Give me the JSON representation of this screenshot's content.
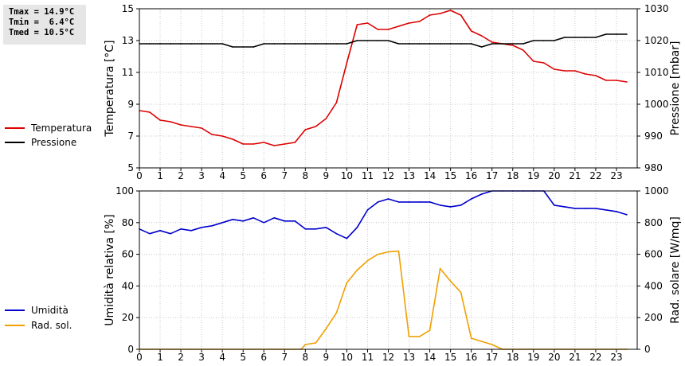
{
  "stats": {
    "tmax": "Tmax = 14.9°C",
    "tmin": "Tmin =  6.4°C",
    "tmed": "Tmed = 10.5°C"
  },
  "chart_data": [
    {
      "type": "line",
      "title": "",
      "xlabel": "",
      "ylabel": "Temperatura [°C]",
      "ylabel_right": "Pressione [mbar]",
      "xlim": [
        0,
        24
      ],
      "ylim": [
        5,
        15
      ],
      "ylim_right": [
        980,
        1030
      ],
      "xticks": [
        "0",
        "1",
        "2",
        "3",
        "4",
        "5",
        "6",
        "7",
        "8",
        "9",
        "10",
        "11",
        "12",
        "13",
        "14",
        "15",
        "16",
        "17",
        "18",
        "19",
        "20",
        "21",
        "22",
        "23"
      ],
      "yticks": [
        "5",
        "7",
        "9",
        "11",
        "13",
        "15"
      ],
      "yticks_right": [
        "980",
        "990",
        "1000",
        "1010",
        "1020",
        "1030"
      ],
      "grid": true,
      "legend_position": "left",
      "series": [
        {
          "name": "Temperatura",
          "color": "#dd0000",
          "axis": "left",
          "x": [
            0,
            0.5,
            1,
            1.5,
            2,
            2.5,
            3,
            3.5,
            4,
            4.5,
            5,
            5.5,
            6,
            6.5,
            7,
            7.5,
            8,
            8.5,
            9,
            9.5,
            10,
            10.5,
            11,
            11.5,
            12,
            12.5,
            13,
            13.5,
            14,
            14.5,
            15,
            15.5,
            16,
            16.5,
            17,
            17.5,
            18,
            18.5,
            19,
            19.5,
            20,
            20.5,
            21,
            21.5,
            22,
            22.5,
            23,
            23.5
          ],
          "values": [
            8.6,
            8.5,
            8.0,
            7.9,
            7.7,
            7.6,
            7.5,
            7.1,
            7.0,
            6.8,
            6.5,
            6.5,
            6.6,
            6.4,
            6.5,
            6.6,
            7.4,
            7.6,
            8.1,
            9.1,
            11.6,
            14.0,
            14.1,
            13.7,
            13.7,
            13.9,
            14.1,
            14.2,
            14.6,
            14.7,
            14.9,
            14.6,
            13.6,
            13.3,
            12.9,
            12.8,
            12.7,
            12.4,
            11.7,
            11.6,
            11.2,
            11.1,
            11.1,
            10.9,
            10.8,
            10.5,
            10.5,
            10.4
          ]
        },
        {
          "name": "Pressione",
          "color": "#000000",
          "axis": "right",
          "x": [
            0,
            0.5,
            1,
            1.5,
            2,
            2.5,
            3,
            3.5,
            4,
            4.5,
            5,
            5.5,
            6,
            6.5,
            7,
            7.5,
            8,
            8.5,
            9,
            9.5,
            10,
            10.5,
            11,
            11.5,
            12,
            12.5,
            13,
            13.5,
            14,
            14.5,
            15,
            15.5,
            16,
            16.5,
            17,
            17.5,
            18,
            18.5,
            19,
            19.5,
            20,
            20.5,
            21,
            21.5,
            22,
            22.5,
            23,
            23.5
          ],
          "values": [
            1019,
            1019,
            1019,
            1019,
            1019,
            1019,
            1019,
            1019,
            1019,
            1018,
            1018,
            1018,
            1019,
            1019,
            1019,
            1019,
            1019,
            1019,
            1019,
            1019,
            1019,
            1020,
            1020,
            1020,
            1020,
            1019,
            1019,
            1019,
            1019,
            1019,
            1019,
            1019,
            1019,
            1018,
            1019,
            1019,
            1019,
            1019,
            1020,
            1020,
            1020,
            1021,
            1021,
            1021,
            1021,
            1022,
            1022,
            1022
          ]
        }
      ]
    },
    {
      "type": "line",
      "title": "",
      "xlabel": "",
      "ylabel": "Umidità relativa [%]",
      "ylabel_right": "Rad. solare [W/mq]",
      "xlim": [
        0,
        24
      ],
      "ylim": [
        0,
        100
      ],
      "ylim_right": [
        0,
        1000
      ],
      "xticks": [
        "0",
        "1",
        "2",
        "3",
        "4",
        "5",
        "6",
        "7",
        "8",
        "9",
        "10",
        "11",
        "12",
        "13",
        "14",
        "15",
        "16",
        "17",
        "18",
        "19",
        "20",
        "21",
        "22",
        "23"
      ],
      "yticks": [
        "0",
        "20",
        "40",
        "60",
        "80",
        "100"
      ],
      "yticks_right": [
        "0",
        "200",
        "400",
        "600",
        "800",
        "1000"
      ],
      "grid": true,
      "legend_position": "left",
      "series": [
        {
          "name": "Umidità",
          "color": "#0000cc",
          "axis": "left",
          "x": [
            0,
            0.5,
            1,
            1.5,
            2,
            2.5,
            3,
            3.5,
            4,
            4.5,
            5,
            5.5,
            6,
            6.5,
            7,
            7.5,
            8,
            8.5,
            9,
            9.5,
            10,
            10.5,
            11,
            11.5,
            12,
            12.5,
            13,
            13.5,
            14,
            14.5,
            15,
            15.5,
            16,
            16.5,
            17,
            17.5,
            18,
            18.5,
            19,
            19.5,
            20,
            20.5,
            21,
            21.5,
            22,
            22.5,
            23,
            23.5
          ],
          "values": [
            76,
            73,
            75,
            73,
            76,
            75,
            77,
            78,
            80,
            82,
            81,
            83,
            80,
            83,
            81,
            81,
            76,
            76,
            77,
            73,
            70,
            77,
            88,
            93,
            95,
            93,
            93,
            93,
            93,
            91,
            90,
            91,
            95,
            98,
            100,
            100,
            100,
            100,
            100,
            100,
            91,
            90,
            89,
            89,
            89,
            88,
            87,
            85
          ]
        },
        {
          "name": "Rad. sol.",
          "color": "#f0a000",
          "axis": "right",
          "x": [
            0,
            0.5,
            1,
            1.5,
            2,
            2.5,
            3,
            3.5,
            4,
            4.5,
            5,
            5.5,
            6,
            6.5,
            7,
            7.5,
            7.8,
            8,
            8.5,
            9,
            9.5,
            10,
            10.5,
            11,
            11.5,
            12,
            12.5,
            13,
            13.5,
            14,
            14.5,
            15,
            15.5,
            16,
            16.5,
            17,
            17.5,
            18,
            18.5,
            19,
            19.5,
            20,
            20.5,
            21,
            21.5,
            22,
            22.5,
            23,
            23.5
          ],
          "values": [
            0,
            0,
            0,
            0,
            0,
            0,
            0,
            0,
            0,
            0,
            0,
            0,
            0,
            0,
            0,
            0,
            0,
            30,
            40,
            130,
            230,
            420,
            500,
            560,
            600,
            615,
            620,
            80,
            80,
            120,
            510,
            430,
            360,
            70,
            50,
            30,
            0,
            0,
            0,
            0,
            0,
            0,
            0,
            0,
            0,
            0,
            0,
            0,
            0
          ]
        }
      ]
    }
  ]
}
